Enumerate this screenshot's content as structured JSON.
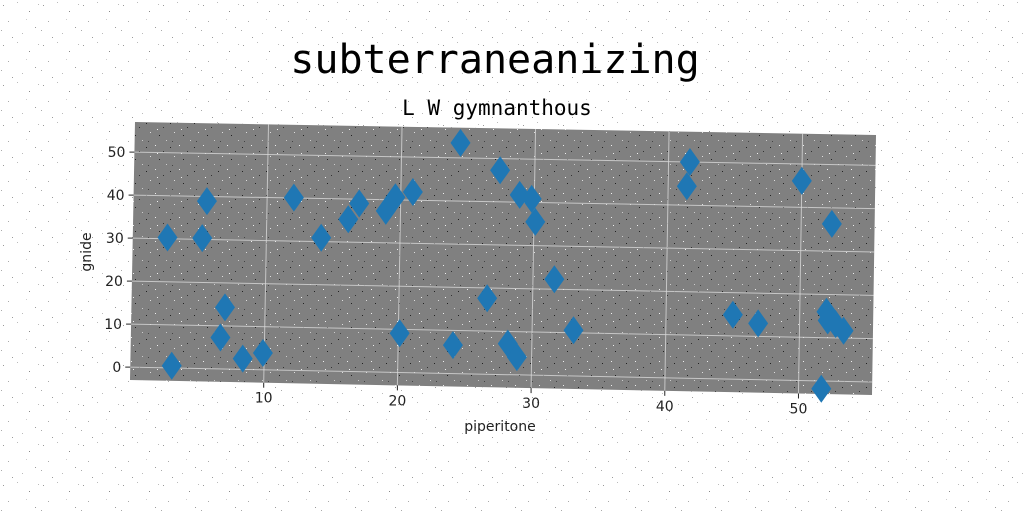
{
  "chart_data": {
    "type": "scatter",
    "title": "subterraneanizing",
    "subtitle": "L W gymnanthous",
    "xlabel": "piperitone",
    "ylabel": "gnide",
    "xlim": [
      0,
      55.5
    ],
    "ylim": [
      -3,
      57
    ],
    "xticks": [
      10,
      20,
      30,
      40,
      50
    ],
    "yticks": [
      0,
      10,
      20,
      30,
      40,
      50
    ],
    "grid": true,
    "marker": "diamond",
    "colors": {
      "marker": "#1f77b4",
      "plot_background": "#808080",
      "grid": "#d8d8d8"
    },
    "points": [
      {
        "x": 2.6,
        "y": 30.3
      },
      {
        "x": 3.1,
        "y": 0.5
      },
      {
        "x": 5.2,
        "y": 30.3
      },
      {
        "x": 5.5,
        "y": 38.9
      },
      {
        "x": 6.7,
        "y": 7.3
      },
      {
        "x": 7.0,
        "y": 14.3
      },
      {
        "x": 8.4,
        "y": 2.5
      },
      {
        "x": 9.9,
        "y": 3.9
      },
      {
        "x": 12.0,
        "y": 40.1
      },
      {
        "x": 14.1,
        "y": 30.9
      },
      {
        "x": 16.1,
        "y": 35.3
      },
      {
        "x": 16.9,
        "y": 39.0
      },
      {
        "x": 18.9,
        "y": 37.4
      },
      {
        "x": 19.6,
        "y": 40.6
      },
      {
        "x": 20.1,
        "y": 9.1
      },
      {
        "x": 20.9,
        "y": 41.9
      },
      {
        "x": 24.1,
        "y": 6.6
      },
      {
        "x": 24.4,
        "y": 53.5
      },
      {
        "x": 26.6,
        "y": 17.6
      },
      {
        "x": 27.4,
        "y": 47.3
      },
      {
        "x": 28.2,
        "y": 7.2
      },
      {
        "x": 28.9,
        "y": 4.1
      },
      {
        "x": 28.9,
        "y": 41.7
      },
      {
        "x": 29.8,
        "y": 40.8
      },
      {
        "x": 30.1,
        "y": 35.5
      },
      {
        "x": 31.6,
        "y": 22.3
      },
      {
        "x": 33.1,
        "y": 10.6
      },
      {
        "x": 41.4,
        "y": 44.4
      },
      {
        "x": 41.6,
        "y": 50.0
      },
      {
        "x": 45.0,
        "y": 14.9
      },
      {
        "x": 46.9,
        "y": 13.0
      },
      {
        "x": 50.0,
        "y": 46.1
      },
      {
        "x": 51.7,
        "y": -1.8
      },
      {
        "x": 52.0,
        "y": 16.0
      },
      {
        "x": 52.1,
        "y": 14.0
      },
      {
        "x": 52.3,
        "y": 36.3
      },
      {
        "x": 52.7,
        "y": 13.2
      },
      {
        "x": 53.3,
        "y": 11.7
      }
    ]
  }
}
